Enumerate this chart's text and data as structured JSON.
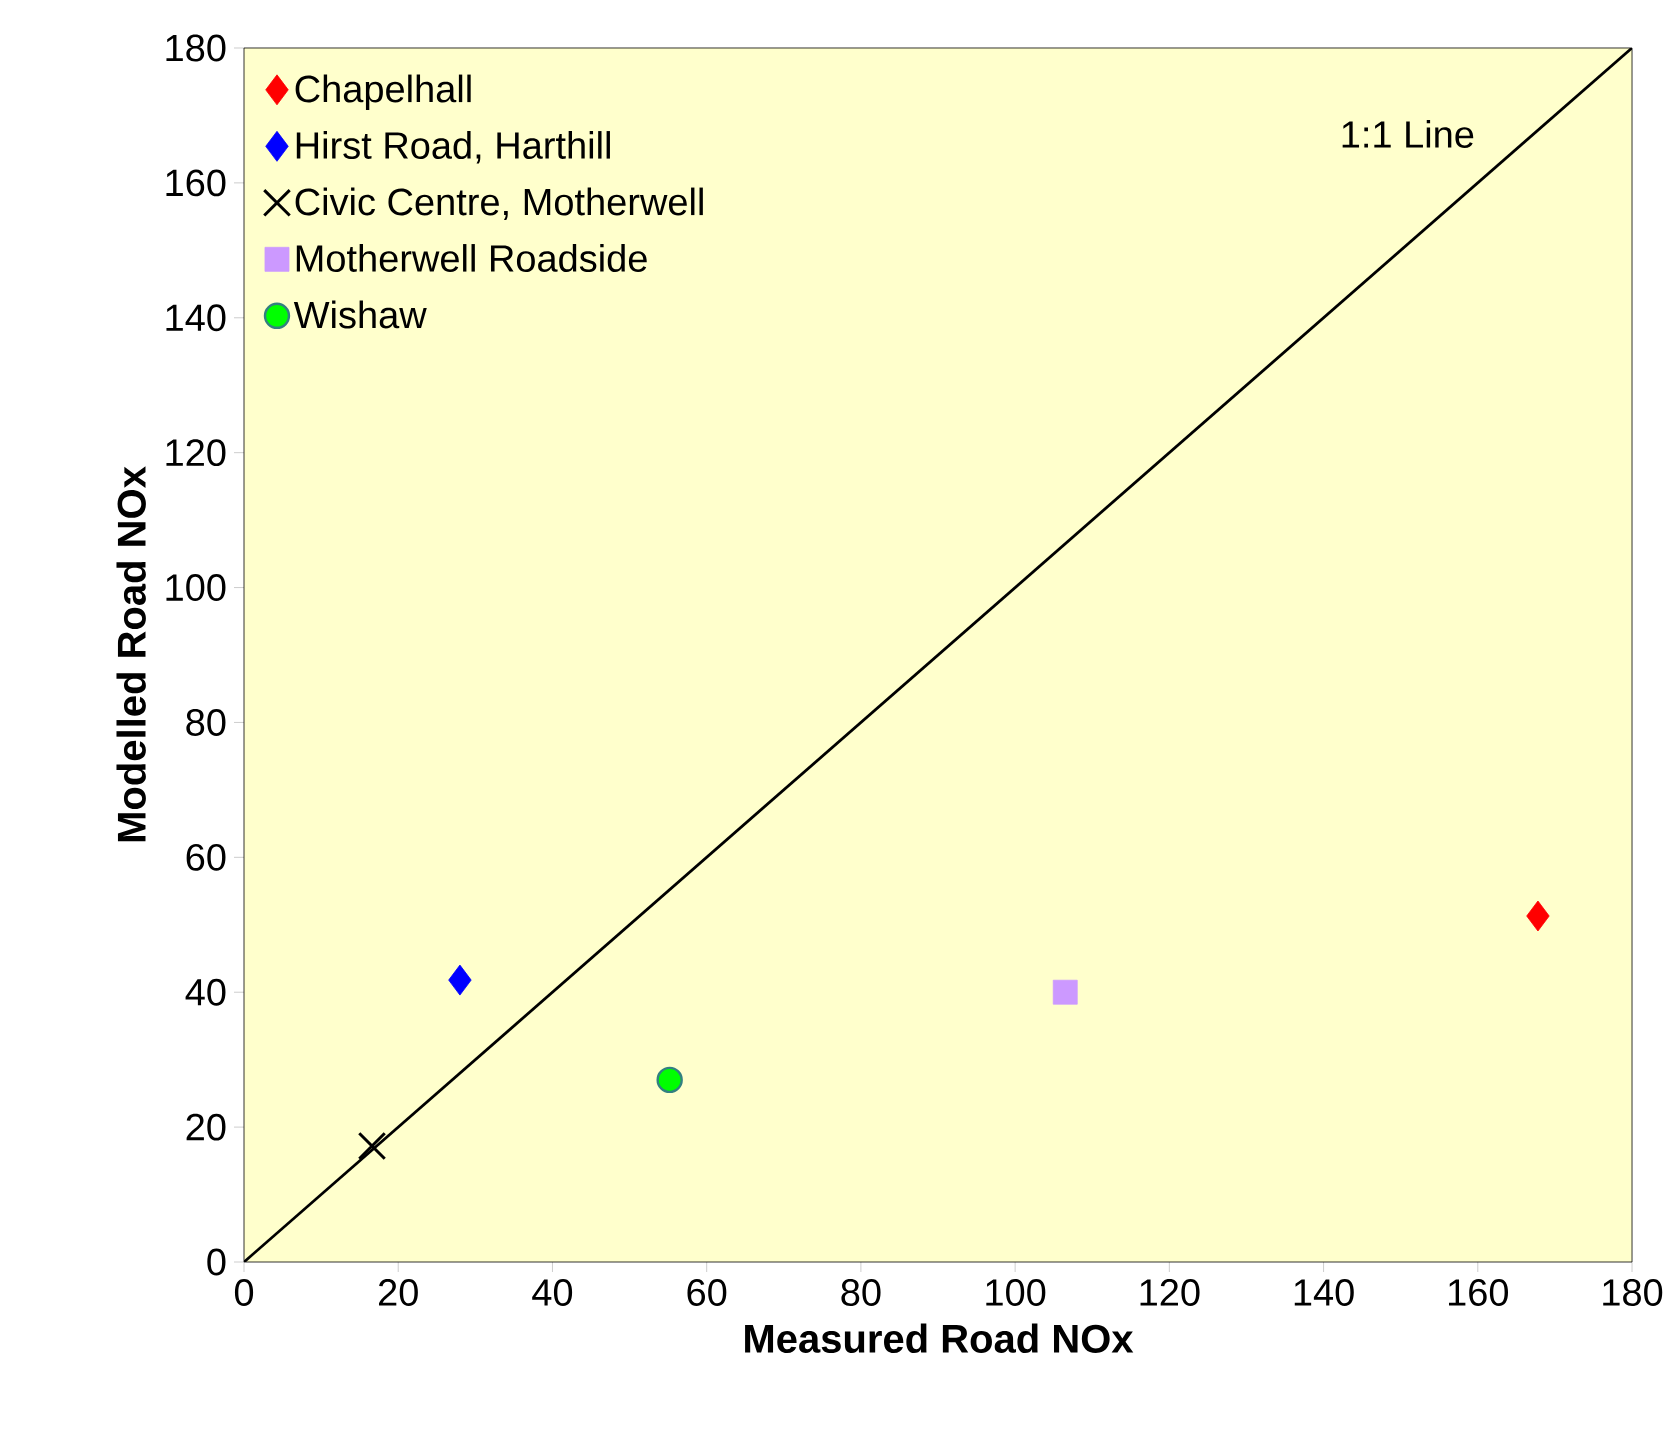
{
  "chart_data": {
    "type": "scatter",
    "xlabel": "Measured Road NOx",
    "ylabel": "Modelled Road NOx",
    "xlim": [
      0,
      180
    ],
    "ylim": [
      0,
      180
    ],
    "xticks": [
      0,
      20,
      40,
      60,
      80,
      100,
      120,
      140,
      160,
      180
    ],
    "yticks": [
      0,
      20,
      40,
      60,
      80,
      100,
      120,
      140,
      160,
      180
    ],
    "grid": false,
    "legend": "top left",
    "series": [
      {
        "name": "Chapelhall",
        "color": "#ff0000",
        "marker": "diamond",
        "x": [
          167.8
        ],
        "values": [
          51.3
        ]
      },
      {
        "name": "Hirst Road, Harthill",
        "color": "#0000ff",
        "marker": "diamond",
        "x": [
          28
        ],
        "values": [
          41.8
        ]
      },
      {
        "name": "Civic Centre, Motherwell",
        "color": "#000000",
        "marker": "cross",
        "x": [
          16.6
        ],
        "values": [
          17.2
        ]
      },
      {
        "name": "Motherwell Roadside",
        "color": "#cc99ff",
        "marker": "square",
        "x": [
          106.5
        ],
        "values": [
          40
        ]
      },
      {
        "name": "Wishaw",
        "color": "#00ff00",
        "marker": "circle",
        "x": [
          55.2
        ],
        "values": [
          27
        ]
      },
      {
        "name": "1:1 Line",
        "type": "line",
        "color": "#000000",
        "marker": "none",
        "line_style": "solid",
        "x": [
          0,
          180
        ],
        "values": [
          0,
          180
        ]
      }
    ]
  }
}
